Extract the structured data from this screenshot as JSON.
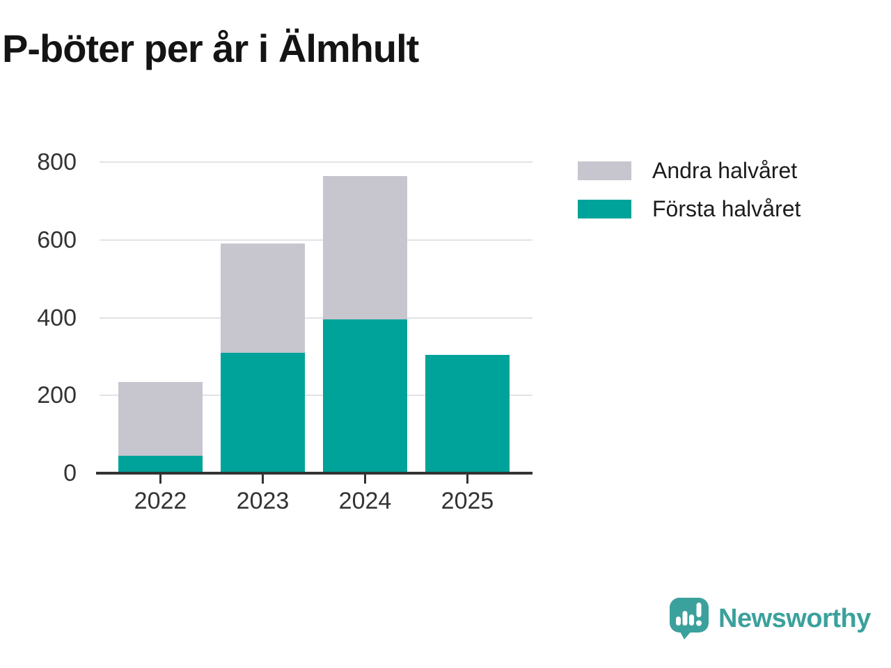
{
  "page": {
    "background": "#ffffff"
  },
  "header": {
    "title": "P-böter per år i Älmhult"
  },
  "legend": {
    "items": [
      {
        "label": "Andra halvåret",
        "color": "#c7c5ce"
      },
      {
        "label": "Första halvåret",
        "color": "#00a39a"
      }
    ]
  },
  "chart_data": {
    "type": "bar",
    "stacked": true,
    "title": "P-böter per år i Älmhult",
    "categories": [
      "2022",
      "2023",
      "2024",
      "2025"
    ],
    "series": [
      {
        "name": "Första halvåret",
        "color": "#00a39a",
        "values": [
          45,
          310,
          395,
          305
        ]
      },
      {
        "name": "Andra halvåret",
        "color": "#c7c5ce",
        "values": [
          190,
          280,
          370,
          null
        ]
      }
    ],
    "totals": [
      235,
      590,
      765,
      305
    ],
    "xlabel": "",
    "ylabel": "",
    "ylim": [
      0,
      800
    ],
    "yticks": [
      0,
      200,
      400,
      600,
      800
    ],
    "grid": true,
    "gridline_color": "#e3e2e7",
    "axis_color": "#333333",
    "legend_position": "top-right",
    "legend_order": [
      "Andra halvåret",
      "Första halvåret"
    ]
  },
  "footer": {
    "logo_text": "Newsworthy",
    "logo_color": "#3ba19c"
  }
}
